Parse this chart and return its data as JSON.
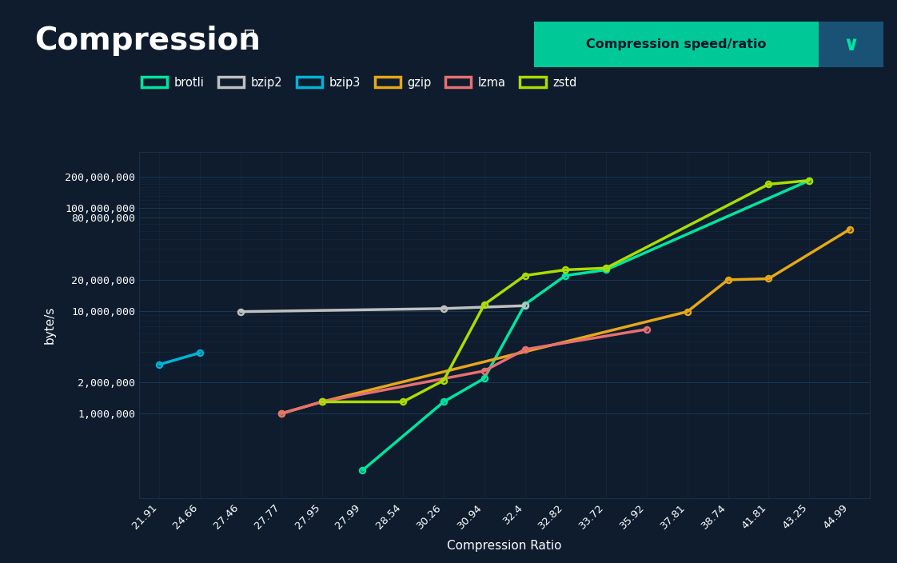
{
  "title": "Compression",
  "title_info": "ⓘ",
  "xlabel": "Compression Ratio",
  "ylabel": "byte/s",
  "button_label": "Compression speed/ratio",
  "background_color": "#0e1c2e",
  "plot_bg_color": "#0e1c2e",
  "grid_color": "#1c3a58",
  "text_color": "#ffffff",
  "x_ticks": [
    "21.91",
    "24.66",
    "27.46",
    "27.77",
    "27.95",
    "27.99",
    "28.54",
    "30.26",
    "30.94",
    "32.4",
    "32.82",
    "33.72",
    "35.92",
    "37.81",
    "38.74",
    "41.81",
    "43.25",
    "44.99"
  ],
  "series_order": [
    "brotli",
    "bzip2",
    "bzip3",
    "gzip",
    "lzma",
    "zstd"
  ],
  "series": {
    "brotli": {
      "color": "#00e5a0",
      "x": [
        "27.99",
        "30.26",
        "30.94",
        "32.4",
        "32.82",
        "33.72",
        "43.25"
      ],
      "y": [
        280000,
        1300000,
        2200000,
        11500000,
        22000000,
        25000000,
        185000000
      ]
    },
    "bzip2": {
      "color": "#c0c0c0",
      "x": [
        "27.46",
        "30.26",
        "32.4"
      ],
      "y": [
        9800000,
        10500000,
        11200000
      ]
    },
    "bzip3": {
      "color": "#00b4d8",
      "x": [
        "21.91",
        "24.66"
      ],
      "y": [
        3000000,
        3900000
      ]
    },
    "gzip": {
      "color": "#e6a817",
      "x": [
        "27.77",
        "27.95",
        "37.81",
        "38.74",
        "41.81",
        "44.99"
      ],
      "y": [
        1000000,
        1300000,
        9800000,
        20000000,
        20500000,
        62000000
      ]
    },
    "lzma": {
      "color": "#e87070",
      "x": [
        "27.77",
        "27.95",
        "30.94",
        "32.4",
        "35.92"
      ],
      "y": [
        1000000,
        1300000,
        2600000,
        4200000,
        6600000
      ]
    },
    "zstd": {
      "color": "#aadd00",
      "x": [
        "27.95",
        "28.54",
        "30.26",
        "30.94",
        "32.4",
        "32.82",
        "33.72",
        "41.81",
        "43.25"
      ],
      "y": [
        1300000,
        1300000,
        2100000,
        11500000,
        22000000,
        25000000,
        26000000,
        170000000,
        185000000
      ]
    }
  },
  "yticks_major": [
    1000000,
    2000000,
    10000000,
    20000000,
    80000000,
    100000000,
    200000000
  ],
  "ytick_labels": [
    "1,000,000",
    "2,000,000",
    "10,000,000",
    "20,000,000",
    "80,000,000",
    "100,000,000",
    "200,000,000"
  ],
  "yticks_minor": [
    3000000,
    4000000,
    5000000,
    6000000,
    7000000,
    8000000,
    9000000,
    30000000,
    40000000,
    50000000,
    60000000,
    70000000,
    90000000,
    110000000,
    120000000,
    130000000,
    140000000,
    150000000,
    160000000,
    170000000,
    180000000,
    190000000
  ],
  "ymin": 150000,
  "ymax": 350000000,
  "btn_color": "#00c896",
  "btn_text_color": "#0a1628",
  "chev_bg_color": "#1a5276",
  "chev_text_color": "#00e5a0"
}
